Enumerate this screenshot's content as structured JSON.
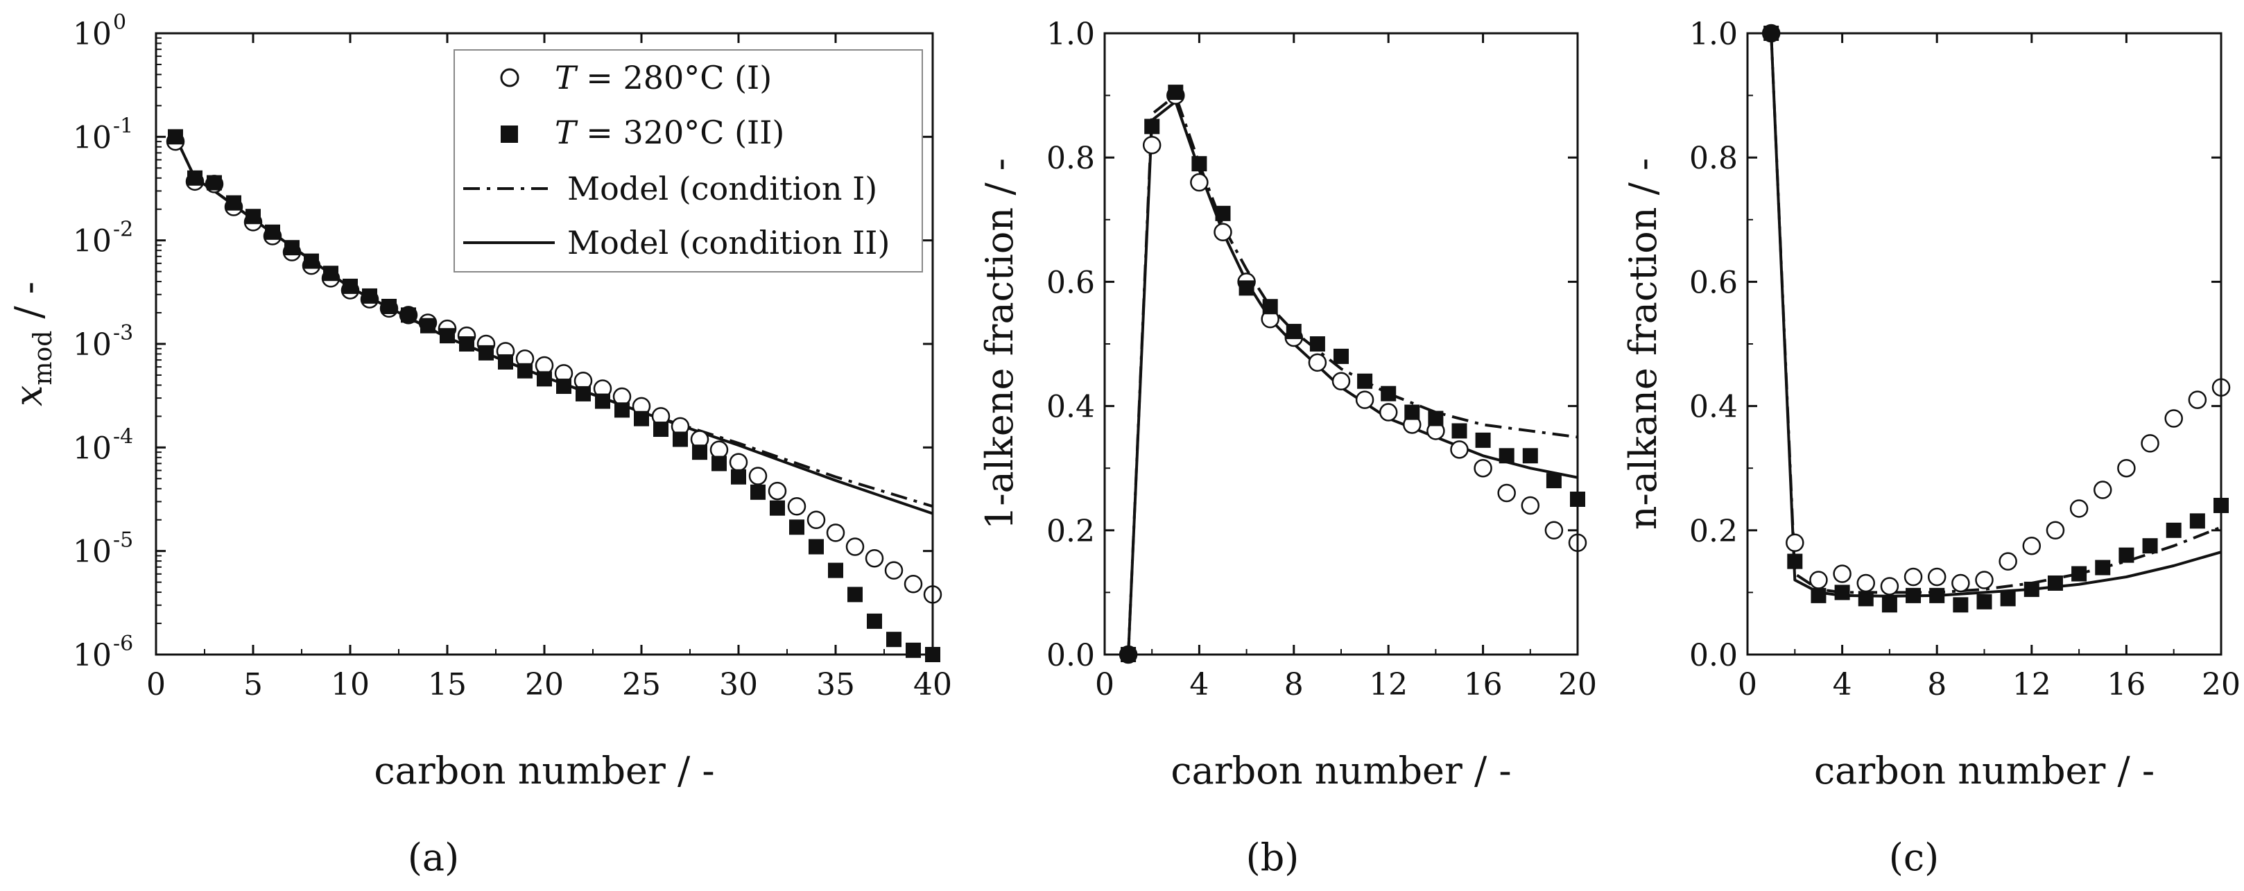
{
  "figure_labels": [
    "(a)",
    "(b)",
    "(c)"
  ],
  "legend": {
    "entries": [
      {
        "T": "T",
        "label": " = 280°C (I)"
      },
      {
        "T": "T",
        "label": " = 320°C (II)"
      },
      {
        "label": "Model (condition I)"
      },
      {
        "label": "Model (condition II)"
      }
    ]
  },
  "chart_data": [
    {
      "type": "scatter",
      "panel": "a",
      "xlabel": "carbon number / -",
      "ylabel": "x_mod / -",
      "ylabel_main": "x",
      "ylabel_sub": "mod",
      "ylabel_suffix": " / -",
      "yscale": "log",
      "xlim": [
        0,
        40
      ],
      "ylim": [
        1e-06,
        1
      ],
      "xticks": [
        0,
        5,
        10,
        15,
        20,
        25,
        30,
        35,
        40
      ],
      "yticks": [
        {
          "value": 1e-06,
          "base": "10",
          "exp": "-6"
        },
        {
          "value": 1e-05,
          "base": "10",
          "exp": "-5"
        },
        {
          "value": 0.0001,
          "base": "10",
          "exp": "-4"
        },
        {
          "value": 0.001,
          "base": "10",
          "exp": "-3"
        },
        {
          "value": 0.01,
          "base": "10",
          "exp": "-2"
        },
        {
          "value": 0.1,
          "base": "10",
          "exp": "-1"
        },
        {
          "value": 1,
          "base": "10",
          "exp": "0"
        }
      ],
      "series": [
        {
          "name": "T = 280°C (I)",
          "style": "open-circle",
          "x": [
            1,
            2,
            3,
            4,
            5,
            6,
            7,
            8,
            9,
            10,
            11,
            12,
            13,
            14,
            15,
            16,
            17,
            18,
            19,
            20,
            21,
            22,
            23,
            24,
            25,
            26,
            27,
            28,
            29,
            30,
            31,
            32,
            33,
            34,
            35,
            36,
            37,
            38,
            39,
            40
          ],
          "y": [
            0.09,
            0.037,
            0.035,
            0.021,
            0.015,
            0.011,
            0.0077,
            0.0057,
            0.0043,
            0.0033,
            0.0027,
            0.0022,
            0.0019,
            0.0016,
            0.0014,
            0.0012,
            0.001,
            0.00085,
            0.00072,
            0.00062,
            0.00052,
            0.00044,
            0.00037,
            0.00031,
            0.00025,
            0.0002,
            0.00016,
            0.00012,
            9.5e-05,
            7.2e-05,
            5.3e-05,
            3.8e-05,
            2.7e-05,
            2e-05,
            1.5e-05,
            1.1e-05,
            8.5e-06,
            6.5e-06,
            4.8e-06,
            3.8e-06
          ]
        },
        {
          "name": "T = 320°C (II)",
          "style": "filled-square",
          "x": [
            1,
            2,
            3,
            4,
            5,
            6,
            7,
            8,
            9,
            10,
            11,
            12,
            13,
            14,
            15,
            16,
            17,
            18,
            19,
            20,
            21,
            22,
            23,
            24,
            25,
            26,
            27,
            28,
            29,
            30,
            31,
            32,
            33,
            34,
            35,
            36,
            37,
            38,
            39,
            40
          ],
          "y": [
            0.1,
            0.04,
            0.036,
            0.023,
            0.017,
            0.012,
            0.0085,
            0.0063,
            0.0048,
            0.0036,
            0.0029,
            0.0023,
            0.0019,
            0.0015,
            0.0012,
            0.001,
            0.00082,
            0.00067,
            0.00055,
            0.00046,
            0.00039,
            0.00033,
            0.00028,
            0.00023,
            0.00019,
            0.00015,
            0.00012,
            9e-05,
            7e-05,
            5.2e-05,
            3.7e-05,
            2.6e-05,
            1.7e-05,
            1.1e-05,
            6.5e-06,
            3.8e-06,
            2.1e-06,
            1.4e-06,
            1.1e-06,
            1e-06
          ]
        },
        {
          "name": "Model (condition I)",
          "style": "dash-dot",
          "x": [
            1,
            2,
            3,
            5,
            10,
            15,
            20,
            25,
            30,
            35,
            40
          ],
          "y": [
            0.1,
            0.04,
            0.03,
            0.016,
            0.0035,
            0.00115,
            0.00048,
            0.00022,
            0.00011,
            5.2e-05,
            2.7e-05
          ]
        },
        {
          "name": "Model (condition II)",
          "style": "solid",
          "x": [
            1,
            2,
            3,
            5,
            10,
            15,
            20,
            25,
            30,
            35,
            40
          ],
          "y": [
            0.1,
            0.04,
            0.03,
            0.016,
            0.0035,
            0.00115,
            0.00048,
            0.00022,
            0.000105,
            4.8e-05,
            2.3e-05
          ]
        }
      ]
    },
    {
      "type": "scatter",
      "panel": "b",
      "xlabel": "carbon number / -",
      "ylabel": "1-alkene fraction / -",
      "xlim": [
        0,
        20
      ],
      "ylim": [
        0,
        1
      ],
      "xticks": [
        0,
        4,
        8,
        12,
        16,
        20
      ],
      "yticks": [
        "0.0",
        "0.2",
        "0.4",
        "0.6",
        "0.8",
        "1.0"
      ],
      "series": [
        {
          "name": "T = 280°C (I)",
          "style": "open-circle",
          "x": [
            1,
            2,
            3,
            4,
            5,
            6,
            7,
            8,
            9,
            10,
            11,
            12,
            13,
            14,
            15,
            16,
            17,
            18,
            19,
            20
          ],
          "y": [
            0.0,
            0.82,
            0.9,
            0.76,
            0.68,
            0.6,
            0.54,
            0.51,
            0.47,
            0.44,
            0.41,
            0.39,
            0.37,
            0.36,
            0.33,
            0.3,
            0.26,
            0.24,
            0.2,
            0.18
          ]
        },
        {
          "name": "T = 320°C (II)",
          "style": "filled-square",
          "x": [
            1,
            2,
            3,
            4,
            5,
            6,
            7,
            8,
            9,
            10,
            11,
            12,
            13,
            14,
            15,
            16,
            17,
            18,
            19,
            20
          ],
          "y": [
            0.0,
            0.85,
            0.905,
            0.79,
            0.71,
            0.59,
            0.56,
            0.52,
            0.5,
            0.48,
            0.44,
            0.42,
            0.39,
            0.38,
            0.36,
            0.345,
            0.32,
            0.32,
            0.28,
            0.25
          ]
        },
        {
          "name": "Model (condition I)",
          "style": "dash-dot",
          "x": [
            1,
            2,
            3,
            4,
            5,
            6,
            7,
            8,
            10,
            12,
            14,
            16,
            18,
            20
          ],
          "y": [
            0.0,
            0.87,
            0.9,
            0.79,
            0.69,
            0.62,
            0.56,
            0.52,
            0.46,
            0.42,
            0.39,
            0.37,
            0.36,
            0.35
          ]
        },
        {
          "name": "Model (condition II)",
          "style": "solid",
          "x": [
            1,
            2,
            3,
            4,
            5,
            6,
            7,
            8,
            10,
            12,
            14,
            16,
            18,
            20
          ],
          "y": [
            0.0,
            0.86,
            0.89,
            0.78,
            0.68,
            0.6,
            0.54,
            0.5,
            0.43,
            0.38,
            0.35,
            0.32,
            0.3,
            0.285
          ]
        }
      ]
    },
    {
      "type": "scatter",
      "panel": "c",
      "xlabel": "carbon number / -",
      "ylabel": "n-alkane fraction / -",
      "xlim": [
        0,
        20
      ],
      "ylim": [
        0,
        1
      ],
      "xticks": [
        0,
        4,
        8,
        12,
        16,
        20
      ],
      "yticks": [
        "0.0",
        "0.2",
        "0.4",
        "0.6",
        "0.8",
        "1.0"
      ],
      "series": [
        {
          "name": "T = 280°C (I)",
          "style": "open-circle",
          "x": [
            1,
            2,
            3,
            4,
            5,
            6,
            7,
            8,
            9,
            10,
            11,
            12,
            13,
            14,
            15,
            16,
            17,
            18,
            19,
            20
          ],
          "y": [
            1.0,
            0.18,
            0.12,
            0.13,
            0.115,
            0.11,
            0.125,
            0.125,
            0.115,
            0.12,
            0.15,
            0.175,
            0.2,
            0.235,
            0.265,
            0.3,
            0.34,
            0.38,
            0.41,
            0.43
          ]
        },
        {
          "name": "T = 320°C (II)",
          "style": "filled-square",
          "x": [
            1,
            2,
            3,
            4,
            5,
            6,
            7,
            8,
            9,
            10,
            11,
            12,
            13,
            14,
            15,
            16,
            17,
            18,
            19,
            20
          ],
          "y": [
            1.0,
            0.15,
            0.095,
            0.1,
            0.09,
            0.08,
            0.095,
            0.095,
            0.08,
            0.085,
            0.09,
            0.105,
            0.115,
            0.13,
            0.14,
            0.16,
            0.175,
            0.2,
            0.215,
            0.24
          ]
        },
        {
          "name": "Model (condition I)",
          "style": "dash-dot",
          "x": [
            1,
            2,
            3,
            4,
            6,
            8,
            10,
            12,
            14,
            16,
            18,
            20
          ],
          "y": [
            1.0,
            0.13,
            0.105,
            0.1,
            0.1,
            0.1,
            0.105,
            0.115,
            0.13,
            0.15,
            0.175,
            0.205
          ]
        },
        {
          "name": "Model (condition II)",
          "style": "solid",
          "x": [
            1,
            2,
            3,
            4,
            6,
            8,
            10,
            12,
            14,
            16,
            18,
            20
          ],
          "y": [
            1.0,
            0.12,
            0.1,
            0.095,
            0.094,
            0.095,
            0.1,
            0.105,
            0.113,
            0.125,
            0.143,
            0.165
          ]
        }
      ]
    }
  ]
}
